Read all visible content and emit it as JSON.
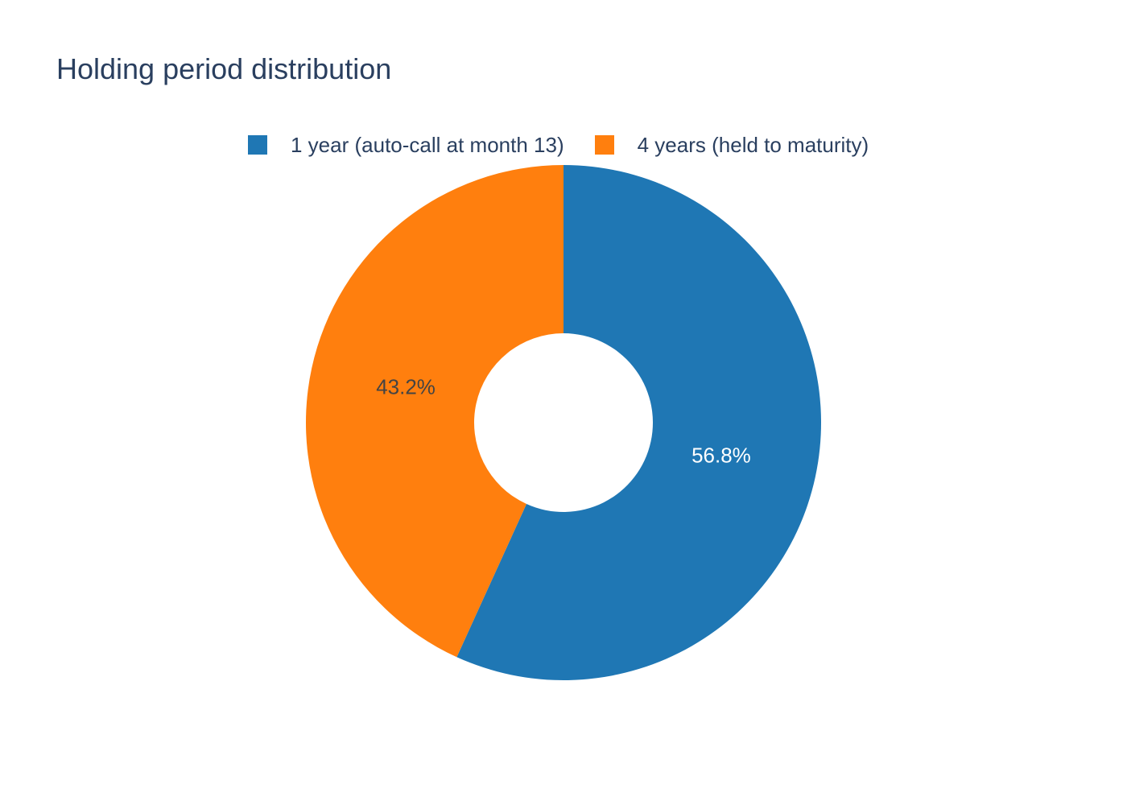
{
  "chart_data": {
    "type": "pie",
    "title": "Holding period distribution",
    "hole": true,
    "labels": [
      "1 year (auto-call at month 13)",
      "4 years (held to maturity)"
    ],
    "values": [
      56.8,
      43.2
    ],
    "text_labels": [
      "56.8%",
      "43.2%"
    ],
    "colors": [
      "#1f77b4",
      "#ff7f0e"
    ],
    "legend_position": "top-center",
    "direction": "clockwise",
    "start": "top"
  }
}
